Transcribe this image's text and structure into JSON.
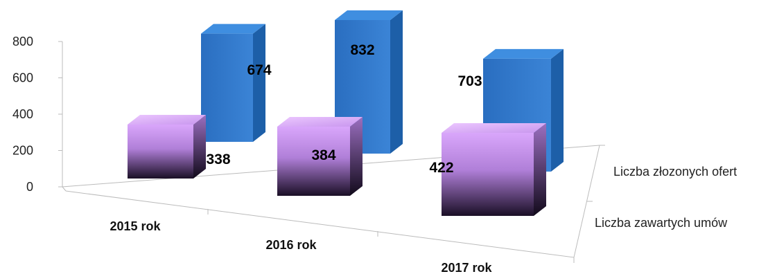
{
  "chart_data": {
    "type": "bar",
    "variant": "3d-column",
    "title": "",
    "xlabel": "",
    "ylabel": "",
    "ylim": [
      0,
      800
    ],
    "yticks": [
      0,
      200,
      400,
      600,
      800
    ],
    "grid": false,
    "categories": [
      "2015 rok",
      "2016 rok",
      "2017 rok"
    ],
    "series": [
      {
        "name": "Liczba złozonych ofert",
        "values": [
          674,
          832,
          703
        ],
        "color": "#2e75c8"
      },
      {
        "name": "Liczba zawartych umów",
        "values": [
          338,
          384,
          422
        ],
        "color": "#c98cf0"
      }
    ]
  }
}
